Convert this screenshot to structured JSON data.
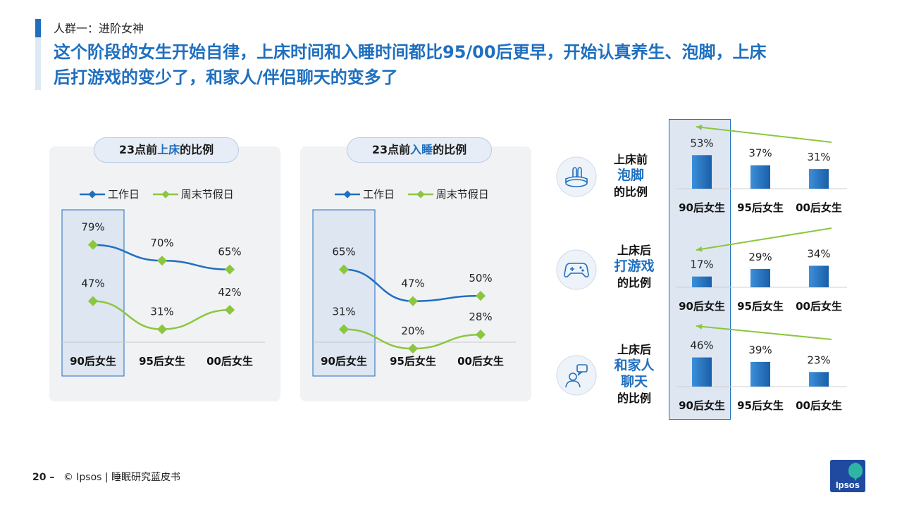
{
  "header": {
    "kicker": "人群一：进阶女神",
    "headline_line1": "这个阶段的女生开始自律，上床时间和入睡时间都比95/00后更早，开始认真养生、泡脚，上床",
    "headline_line2": "后打游戏的变少了，和家人/伴侣聊天的变多了"
  },
  "colors": {
    "blue": "#1f6fbf",
    "green": "#8cc63f",
    "bar_blue": "#1f6fbf",
    "highlight": "#dde6f1"
  },
  "chart_data": [
    {
      "type": "line",
      "title_prefix": "23点前",
      "title_highlight": "上床",
      "title_suffix": "的比例",
      "categories": [
        "90后女生",
        "95后女生",
        "00后女生"
      ],
      "series": [
        {
          "name": "工作日",
          "values": [
            79,
            70,
            65
          ],
          "labels": [
            "79%",
            "70%",
            "65%"
          ]
        },
        {
          "name": "周末节假日",
          "values": [
            47,
            31,
            42
          ],
          "labels": [
            "47%",
            "31%",
            "42%"
          ]
        }
      ],
      "ylim": [
        0,
        100
      ]
    },
    {
      "type": "line",
      "title_prefix": "23点前",
      "title_highlight": "入睡",
      "title_suffix": "的比例",
      "categories": [
        "90后女生",
        "95后女生",
        "00后女生"
      ],
      "series": [
        {
          "name": "工作日",
          "values": [
            65,
            47,
            50
          ],
          "labels": [
            "65%",
            "47%",
            "50%"
          ]
        },
        {
          "name": "周末节假日",
          "values": [
            31,
            20,
            28
          ],
          "labels": [
            "31%",
            "20%",
            "28%"
          ]
        }
      ],
      "ylim": [
        0,
        100
      ]
    },
    {
      "type": "bar",
      "label_line1": "上床前",
      "label_line2": "泡脚",
      "label_line3": "的比例",
      "icon": "foot-bath-icon",
      "categories": [
        "90后女生",
        "95后女生",
        "00后女生"
      ],
      "values": [
        53,
        37,
        31
      ],
      "labels": [
        "53%",
        "37%",
        "31%"
      ]
    },
    {
      "type": "bar",
      "label_line1": "上床后",
      "label_line2": "打游戏",
      "label_line3": "的比例",
      "icon": "gamepad-icon",
      "categories": [
        "90后女生",
        "95后女生",
        "00后女生"
      ],
      "values": [
        17,
        29,
        34
      ],
      "labels": [
        "17%",
        "29%",
        "34%"
      ]
    },
    {
      "type": "bar",
      "label_line1": "上床后",
      "label_line2": "和家人",
      "label_line3": "聊天",
      "label_line4": "的比例",
      "icon": "chat-person-icon",
      "categories": [
        "90后女生",
        "95后女生",
        "00后女生"
      ],
      "values": [
        46,
        39,
        23
      ],
      "labels": [
        "46%",
        "39%",
        "23%"
      ]
    }
  ],
  "footer": {
    "page_number": "20 –",
    "copyright": "© Ipsos | 睡眠研究蓝皮书"
  },
  "logo": {
    "text": "Ipsos"
  }
}
